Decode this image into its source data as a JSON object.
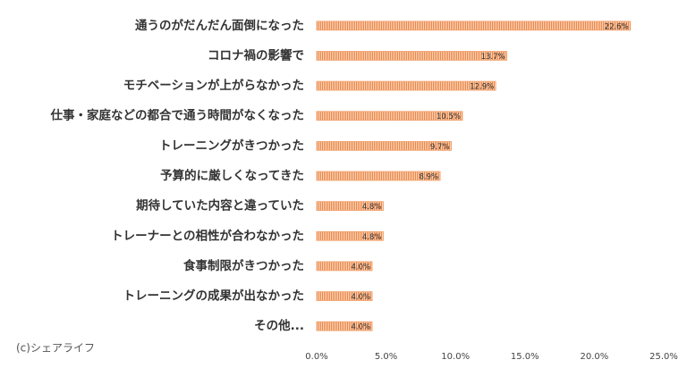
{
  "chart_data": {
    "type": "barh",
    "categories": [
      "通うのがだんだん面倒になった",
      "コロナ禍の影響で",
      "モチベーションが上がらなかった",
      "仕事・家庭などの都合で通う時間がなくなった",
      "トレーニングがきつかった",
      "予算的に厳しくなってきた",
      "期待していた内容と違っていた",
      "トレーナーとの相性が合わなかった",
      "食事制限がきつかった",
      "トレーニングの成果が出なかった",
      "その他..."
    ],
    "values": [
      22.6,
      13.7,
      12.9,
      10.5,
      9.7,
      8.9,
      4.8,
      4.8,
      4.0,
      4.0,
      4.0
    ],
    "value_labels": [
      "22.6%",
      "13.7%",
      "12.9%",
      "10.5%",
      "9.7%",
      "8.9%",
      "4.8%",
      "4.8%",
      "4.0%",
      "4.0%",
      "4.0%"
    ],
    "color": "#f2a36e",
    "xlim": [
      0,
      25
    ],
    "xticks": [
      {
        "value": 0,
        "label": "0.0%"
      },
      {
        "value": 5,
        "label": "5.0%"
      },
      {
        "value": 10,
        "label": "10.0%"
      },
      {
        "value": 15,
        "label": "15.0%"
      },
      {
        "value": 20,
        "label": "20.0%"
      },
      {
        "value": 25,
        "label": "25.0%"
      }
    ],
    "copyright": "(c)シェアライフ"
  }
}
